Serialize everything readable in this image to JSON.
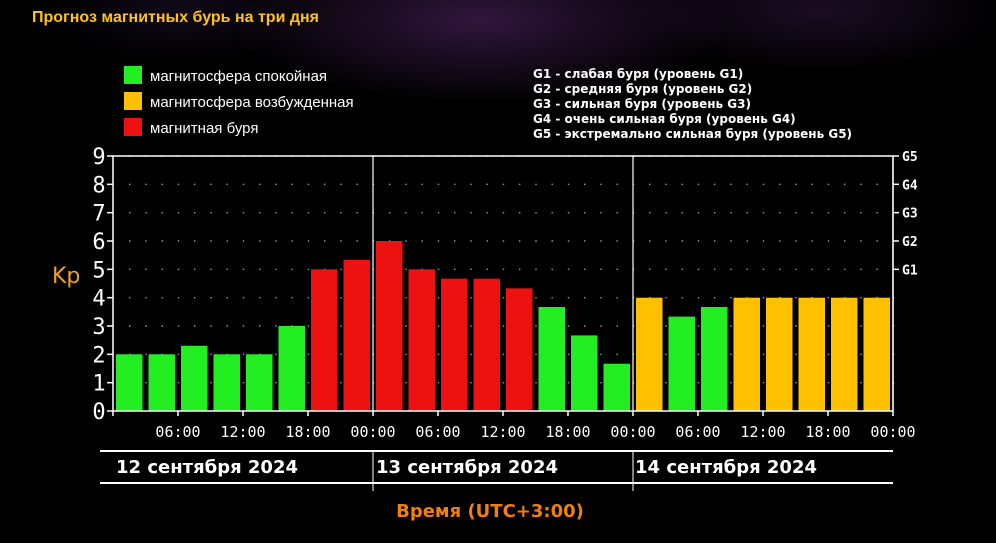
{
  "title": "Прогноз магнитных бурь на три дня",
  "chart_data": {
    "type": "bar",
    "ylabel": "Kp",
    "xlabel": "Время (UTC+3:00)",
    "ylim": [
      0,
      9
    ],
    "y_ticks": [
      "0",
      "1",
      "2",
      "3",
      "4",
      "5",
      "6",
      "7",
      "8",
      "9"
    ],
    "right_axis_ticks": [
      {
        "kp": 5,
        "label": "G1"
      },
      {
        "kp": 6,
        "label": "G2"
      },
      {
        "kp": 7,
        "label": "G3"
      },
      {
        "kp": 8,
        "label": "G4"
      },
      {
        "kp": 9,
        "label": "G5"
      }
    ],
    "x_tick_labels": [
      "06:00",
      "12:00",
      "18:00",
      "00:00",
      "06:00",
      "12:00",
      "18:00",
      "00:00",
      "06:00",
      "12:00",
      "18:00",
      "00:00"
    ],
    "days": [
      "12 сентября 2024",
      "13 сентября 2024",
      "14 сентября 2024"
    ],
    "values": [
      2,
      2,
      2.3,
      2,
      2,
      3,
      5,
      5.33,
      6,
      5,
      4.67,
      4.67,
      4.33,
      3.67,
      2.67,
      1.67,
      4,
      3.33,
      3.67,
      4,
      4,
      4,
      4,
      4
    ],
    "bar_levels": [
      "calm",
      "calm",
      "calm",
      "calm",
      "calm",
      "calm",
      "storm",
      "storm",
      "storm",
      "storm",
      "storm",
      "storm",
      "storm",
      "calm",
      "calm",
      "calm",
      "excited",
      "calm",
      "calm",
      "excited",
      "excited",
      "excited",
      "excited",
      "excited"
    ],
    "legend": [
      {
        "key": "calm",
        "label": "магнитосфера спокойная",
        "color": "#22ee22"
      },
      {
        "key": "excited",
        "label": "магнитосфера возбужденная",
        "color": "#ffc000"
      },
      {
        "key": "storm",
        "label": "магнитная буря",
        "color": "#ee1111"
      }
    ],
    "g_scale": [
      "G1 - слабая буря (уровень G1)",
      "G2 - средняя буря (уровень G2)",
      "G3 - сильная буря (уровень G3)",
      "G4 - очень сильная буря (уровень G4)",
      "G5 - экстремально сильная буря (уровень G5)"
    ],
    "grid": true
  },
  "colors": {
    "axis": "#ffffff",
    "ylabel": "#f0a020",
    "xlabel": "#f07f10"
  }
}
